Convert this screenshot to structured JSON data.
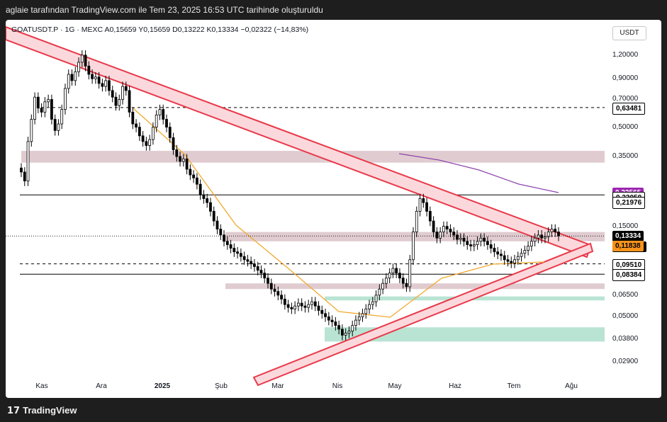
{
  "header": {
    "attribution": "aglaie tarafından TradingView.com ile Tem 23, 2025 16:53 UTC tarihinde oluşturuldu"
  },
  "footer": {
    "brand": "TradingView",
    "brand_icon": "tradingview-logo-icon"
  },
  "currency_button": "USDT",
  "symbol_line": {
    "symbol": "GOATUSDT.P · 1G · MEXC",
    "open": "A0,15659",
    "high": "Y0,15659",
    "low": "D0,13222",
    "close": "K0,13334",
    "change": "−0,02322 (−14,83%)"
  },
  "colors": {
    "candle": "#000000",
    "wedge_line": "#e8394a",
    "wedge_fill": "#fbd8dc",
    "ma_orange": "#f2a930",
    "ma_purple": "#8e44ad",
    "zone_resistance": "#d8bfc4",
    "zone_support": "#a8ddc8",
    "tag_price_bg": "#000000",
    "tag_orange_bg": "#f7931a",
    "tag_purple_bg": "#9c27b0"
  },
  "chart_data": {
    "type": "candlestick",
    "y_scale": "log",
    "ylim": [
      0.025,
      1.55
    ],
    "y_ticks": [
      "1,20000",
      "0,90000",
      "0,70000",
      "0,50000",
      "0,35000",
      "0,15000",
      "0,06500",
      "0,05000",
      "0,03800",
      "0,02900"
    ],
    "y_tick_values": [
      1.2,
      0.9,
      0.7,
      0.5,
      0.35,
      0.15,
      0.065,
      0.05,
      0.038,
      0.029
    ],
    "x_ticks": [
      {
        "label": "Kas",
        "bold": false
      },
      {
        "label": "Ara",
        "bold": false
      },
      {
        "label": "2025",
        "bold": true
      },
      {
        "label": "Şub",
        "bold": false
      },
      {
        "label": "Mar",
        "bold": false
      },
      {
        "label": "Nis",
        "bold": false
      },
      {
        "label": "May",
        "bold": false
      },
      {
        "label": "Haz",
        "bold": false
      },
      {
        "label": "Tem",
        "bold": false
      },
      {
        "label": "Ağu",
        "bold": false
      }
    ],
    "price_tags": [
      {
        "label": "0,63481",
        "style": "plain"
      },
      {
        "label": "0,22565",
        "style": "purple"
      },
      {
        "label": "0,22050",
        "style": "plain"
      },
      {
        "label": "0,21976",
        "style": "plain"
      },
      {
        "label": "0,13334",
        "style": "dark"
      },
      {
        "label": "07:06:40",
        "style": "dark"
      },
      {
        "label": "0,11838",
        "style": "orange"
      },
      {
        "label": "0,09510",
        "style": "plain"
      },
      {
        "label": "0,08384",
        "style": "plain"
      }
    ],
    "price_tag_values": [
      0.63481,
      0.22565,
      0.2205,
      0.21976,
      0.13334,
      0.13334,
      0.11838,
      0.0951,
      0.08384
    ],
    "horizontal_lines": [
      {
        "price": 0.63481,
        "style": "dashed"
      },
      {
        "price": 0.21976,
        "style": "solid"
      },
      {
        "price": 0.0951,
        "style": "dashed"
      },
      {
        "price": 0.08384,
        "style": "solid"
      }
    ],
    "zones": [
      {
        "kind": "resistance",
        "low": 0.325,
        "high": 0.375
      },
      {
        "kind": "resistance",
        "low": 0.125,
        "high": 0.14
      },
      {
        "kind": "resistance",
        "low": 0.07,
        "high": 0.075
      },
      {
        "kind": "support",
        "low": 0.061,
        "high": 0.064
      },
      {
        "kind": "support",
        "low": 0.037,
        "high": 0.044
      }
    ],
    "candles_close": [
      0.29,
      0.26,
      0.42,
      0.55,
      0.72,
      0.63,
      0.6,
      0.68,
      0.7,
      0.55,
      0.48,
      0.52,
      0.62,
      0.8,
      0.95,
      0.88,
      0.98,
      1.1,
      1.2,
      1.05,
      0.95,
      0.9,
      0.92,
      0.85,
      0.82,
      0.88,
      0.78,
      0.72,
      0.65,
      0.7,
      0.82,
      0.78,
      0.6,
      0.52,
      0.5,
      0.45,
      0.42,
      0.4,
      0.43,
      0.5,
      0.58,
      0.62,
      0.55,
      0.5,
      0.44,
      0.38,
      0.35,
      0.33,
      0.34,
      0.3,
      0.28,
      0.27,
      0.25,
      0.22,
      0.21,
      0.2,
      0.18,
      0.16,
      0.145,
      0.135,
      0.125,
      0.12,
      0.115,
      0.11,
      0.108,
      0.104,
      0.1,
      0.098,
      0.095,
      0.092,
      0.088,
      0.085,
      0.08,
      0.075,
      0.07,
      0.068,
      0.065,
      0.062,
      0.058,
      0.056,
      0.055,
      0.057,
      0.059,
      0.057,
      0.056,
      0.058,
      0.06,
      0.057,
      0.054,
      0.052,
      0.05,
      0.048,
      0.047,
      0.045,
      0.043,
      0.04,
      0.041,
      0.042,
      0.045,
      0.048,
      0.05,
      0.052,
      0.055,
      0.058,
      0.06,
      0.065,
      0.07,
      0.075,
      0.08,
      0.085,
      0.09,
      0.085,
      0.08,
      0.075,
      0.072,
      0.1,
      0.14,
      0.18,
      0.21,
      0.2,
      0.18,
      0.16,
      0.14,
      0.13,
      0.14,
      0.15,
      0.145,
      0.14,
      0.135,
      0.128,
      0.13,
      0.125,
      0.12,
      0.118,
      0.12,
      0.125,
      0.13,
      0.125,
      0.12,
      0.115,
      0.11,
      0.107,
      0.105,
      0.1,
      0.098,
      0.096,
      0.1,
      0.104,
      0.108,
      0.112,
      0.118,
      0.125,
      0.13,
      0.135,
      0.13,
      0.132,
      0.14,
      0.145,
      0.14,
      0.13334
    ],
    "ma_orange": [
      [
        0.58,
        0.15
      ],
      [
        0.55,
        0.2
      ],
      [
        0.52,
        0.32
      ],
      [
        0.45,
        0.5
      ],
      [
        0.38,
        0.65
      ],
      [
        0.3,
        0.78
      ],
      [
        0.22,
        0.88
      ],
      [
        0.15,
        0.95
      ],
      [
        0.11,
        1.0
      ]
    ],
    "ma_purple": [
      [
        0.66,
        0.36
      ],
      [
        0.75,
        0.34
      ],
      [
        0.84,
        0.3
      ],
      [
        0.94,
        0.27
      ],
      [
        1.0,
        0.25
      ]
    ]
  }
}
